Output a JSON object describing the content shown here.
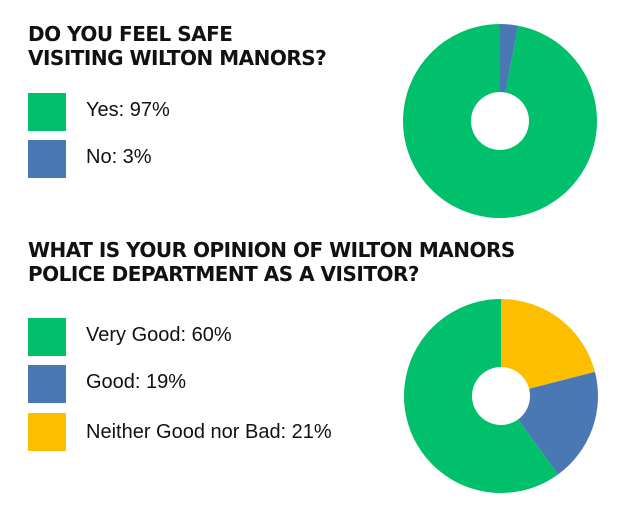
{
  "chart_data": [
    {
      "type": "pie",
      "title": "DO YOU FEEL SAFE VISITING WILTON MANORS?",
      "title_lines": [
        "DO YOU FEEL SAFE",
        "VISITING WILTON MANORS?"
      ],
      "categories": [
        "Yes",
        "No"
      ],
      "values": [
        97,
        3
      ],
      "colors": [
        "#00c06b",
        "#4a78b5"
      ],
      "legend": [
        "Yes: 97%",
        "No: 3%"
      ],
      "donut": true,
      "legend_position": "left"
    },
    {
      "type": "pie",
      "title": "WHAT IS YOUR OPINION OF WILTON MANORS POLICE DEPARTMENT AS A VISITOR?",
      "title_lines": [
        "WHAT IS YOUR OPINION OF WILTON MANORS",
        "POLICE DEPARTMENT AS A VISITOR?"
      ],
      "categories": [
        "Very Good",
        "Good",
        "Neither Good nor Bad"
      ],
      "values": [
        60,
        19,
        21
      ],
      "colors": [
        "#00c06b",
        "#4a78b5",
        "#fbbf00"
      ],
      "legend": [
        "Very Good: 60%",
        "Good: 19%",
        "Neither Good nor Bad: 21%"
      ],
      "donut": true,
      "legend_position": "left"
    }
  ]
}
